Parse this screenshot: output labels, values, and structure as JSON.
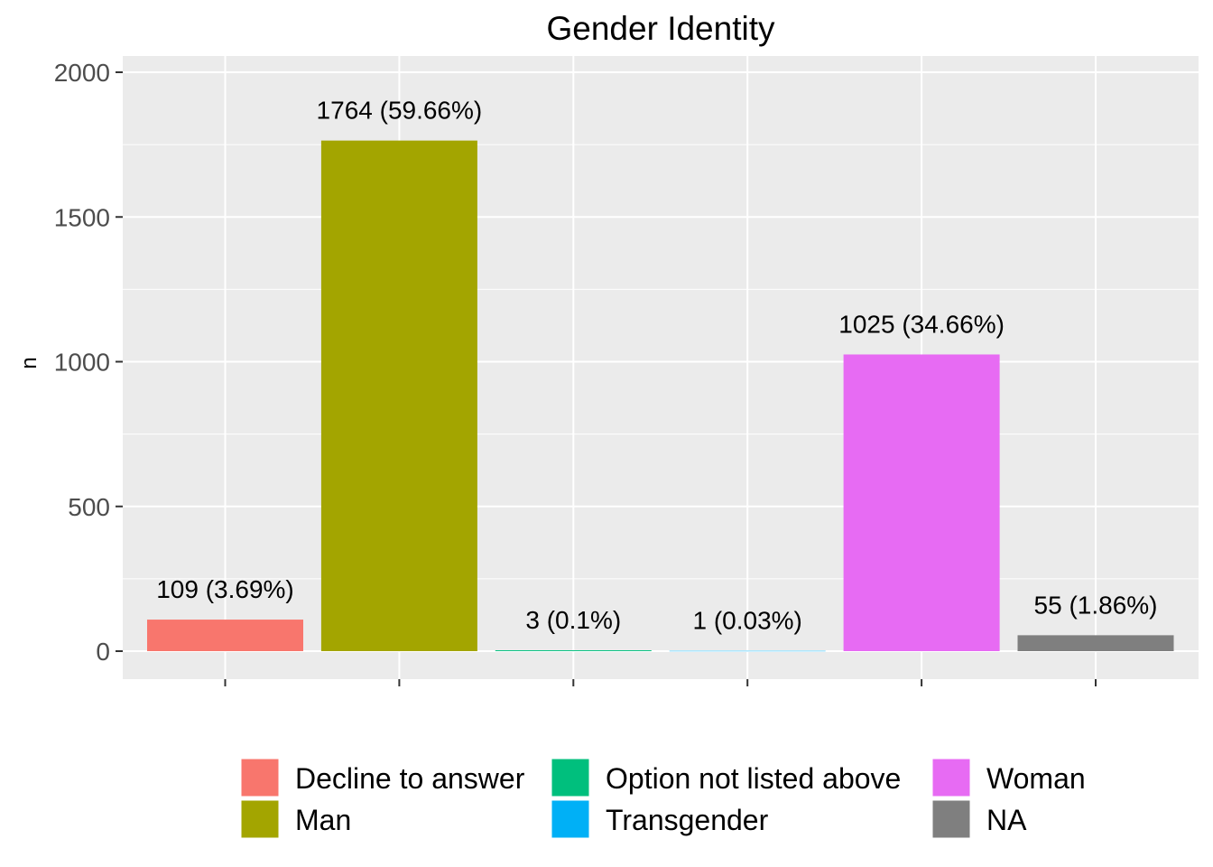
{
  "chart_data": {
    "type": "bar",
    "title": "Gender Identity",
    "xlabel": "",
    "ylabel": "n",
    "ylim": [
      0,
      2000
    ],
    "yticks": [
      0,
      500,
      1000,
      1500,
      2000
    ],
    "grid": true,
    "legend_position": "bottom",
    "categories": [
      "Decline to answer",
      "Man",
      "Option not listed above",
      "Transgender",
      "Woman",
      "NA"
    ],
    "values": [
      109,
      1764,
      3,
      1,
      1025,
      55
    ],
    "data_labels": [
      "109 (3.69%)",
      "1764 (59.66%)",
      "3 (0.1%)",
      "1 (0.03%)",
      "1025 (34.66%)",
      "55 (1.86%)"
    ],
    "colors": [
      "#F8766D",
      "#A3A500",
      "#00BF7D",
      "#00B0F6",
      "#E76BF3",
      "#7F7F7F"
    ],
    "panel_background": "#EBEBEB",
    "grid_color": "#FFFFFF"
  }
}
